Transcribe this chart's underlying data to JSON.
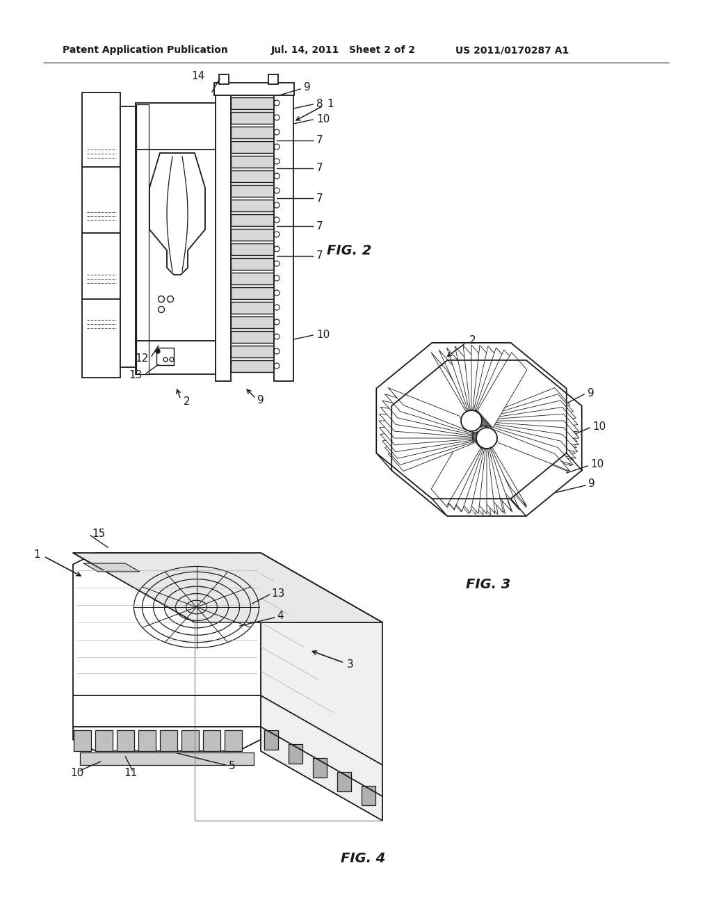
{
  "bg_color": "#ffffff",
  "header_left": "Patent Application Publication",
  "header_mid": "Jul. 14, 2011   Sheet 2 of 2",
  "header_right": "US 2011/0170287 A1",
  "fig2_label": "FIG. 2",
  "fig3_label": "FIG. 3",
  "fig4_label": "FIG. 4",
  "line_color": "#1a1a1a",
  "line_width": 1.3,
  "text_color": "#1a1a1a"
}
